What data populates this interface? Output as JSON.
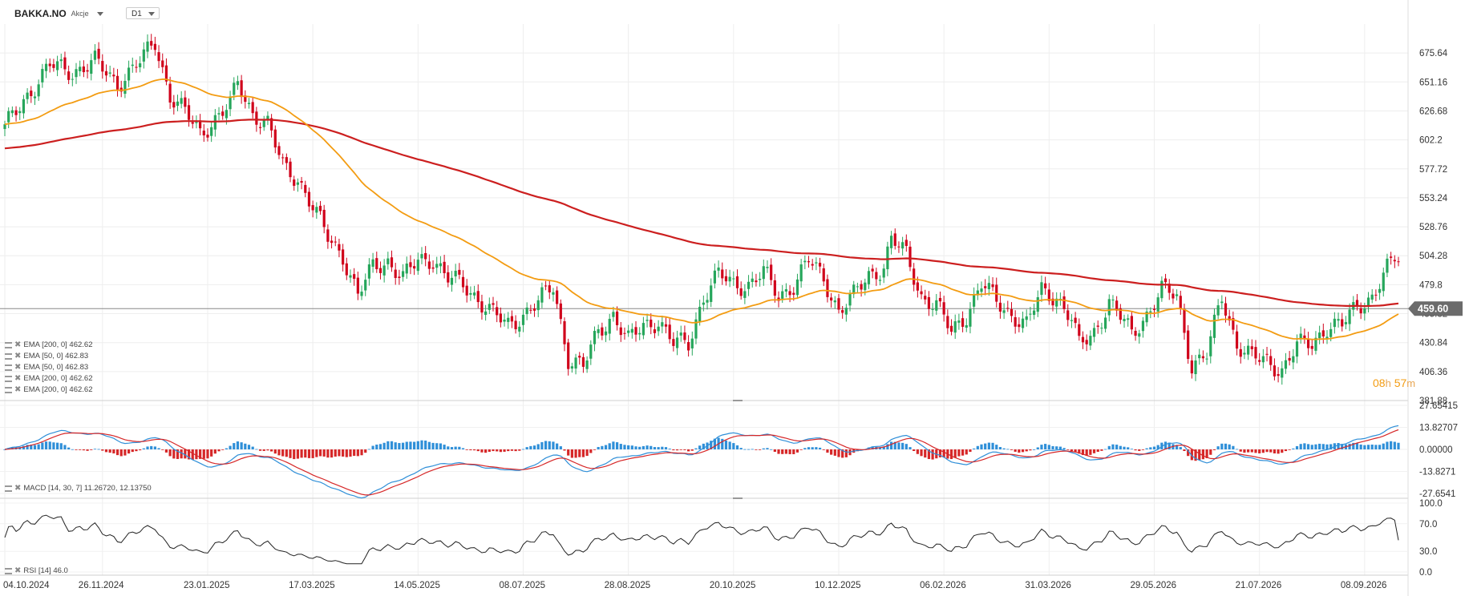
{
  "header": {
    "symbol": "BAKKA.NO",
    "type": "Akcje",
    "timeframe": "D1"
  },
  "timer": {
    "hours": "08",
    "h_unit": "h",
    "minutes": "57",
    "m_unit": "m"
  },
  "legend": [
    "EMA [200, 0] 462.62",
    "EMA [50, 0] 462.83",
    "EMA [50, 0] 462.83",
    "EMA [200, 0] 462.62",
    "EMA [200, 0] 462.62"
  ],
  "macd_legend": "MACD [14, 30, 7] 11.26720, 12.13750",
  "rsi_legend": "RSI [14] 46.0",
  "colors": {
    "up": "#26a65b",
    "down": "#d0021b",
    "ema50": "#f39c12",
    "ema200": "#cc1f1f",
    "macd": "#2f8fd8",
    "signal": "#d62728",
    "rsi": "#222222"
  },
  "chart_data": {
    "type": "candlestick",
    "price_axis": {
      "ticks": [
        675.64,
        651.16,
        626.68,
        602.2,
        577.72,
        553.24,
        528.76,
        504.28,
        479.8,
        455.32,
        430.84,
        406.36,
        381.88
      ],
      "range": [
        381.88,
        700.12
      ]
    },
    "last_price": "459.60",
    "dates": [
      "04.10.2024",
      "26.11.2024",
      "23.01.2025",
      "17.03.2025",
      "14.05.2025",
      "08.07.2025",
      "28.08.2025",
      "20.10.2025",
      "10.12.2025",
      "06.02.2026",
      "31.03.2026",
      "29.05.2026",
      "21.07.2026",
      "08.09.2026"
    ],
    "close_anchors": [
      [
        0,
        612
      ],
      [
        6,
        640
      ],
      [
        12,
        665
      ],
      [
        18,
        660
      ],
      [
        24,
        668
      ],
      [
        30,
        650
      ],
      [
        36,
        668
      ],
      [
        40,
        685
      ],
      [
        44,
        640
      ],
      [
        48,
        625
      ],
      [
        52,
        608
      ],
      [
        56,
        620
      ],
      [
        60,
        632
      ],
      [
        62,
        650
      ],
      [
        66,
        625
      ],
      [
        70,
        615
      ],
      [
        74,
        580
      ],
      [
        78,
        570
      ],
      [
        82,
        545
      ],
      [
        86,
        520
      ],
      [
        90,
        505
      ],
      [
        94,
        470
      ],
      [
        98,
        495
      ],
      [
        102,
        500
      ],
      [
        106,
        485
      ],
      [
        110,
        500
      ],
      [
        114,
        502
      ],
      [
        118,
        485
      ],
      [
        122,
        480
      ],
      [
        126,
        468
      ],
      [
        130,
        455
      ],
      [
        134,
        445
      ],
      [
        138,
        455
      ],
      [
        142,
        465
      ],
      [
        146,
        478
      ],
      [
        150,
        418
      ],
      [
        154,
        410
      ],
      [
        158,
        440
      ],
      [
        162,
        455
      ],
      [
        166,
        432
      ],
      [
        170,
        445
      ],
      [
        174,
        450
      ],
      [
        178,
        430
      ],
      [
        182,
        430
      ],
      [
        186,
        470
      ],
      [
        190,
        488
      ],
      [
        194,
        480
      ],
      [
        198,
        480
      ],
      [
        202,
        490
      ],
      [
        206,
        470
      ],
      [
        210,
        480
      ],
      [
        214,
        500
      ],
      [
        218,
        485
      ],
      [
        222,
        458
      ],
      [
        226,
        470
      ],
      [
        230,
        488
      ],
      [
        234,
        495
      ],
      [
        236,
        518
      ],
      [
        240,
        505
      ],
      [
        244,
        470
      ],
      [
        248,
        462
      ],
      [
        252,
        440
      ],
      [
        256,
        455
      ],
      [
        260,
        480
      ],
      [
        264,
        466
      ],
      [
        268,
        455
      ],
      [
        272,
        445
      ],
      [
        276,
        475
      ],
      [
        280,
        470
      ],
      [
        284,
        450
      ],
      [
        286,
        428
      ],
      [
        290,
        440
      ],
      [
        294,
        465
      ],
      [
        298,
        448
      ],
      [
        300,
        438
      ],
      [
        304,
        455
      ],
      [
        308,
        475
      ],
      [
        312,
        470
      ],
      [
        316,
        412
      ],
      [
        320,
        420
      ],
      [
        324,
        470
      ],
      [
        328,
        430
      ],
      [
        332,
        418
      ],
      [
        336,
        415
      ],
      [
        340,
        408
      ],
      [
        344,
        428
      ],
      [
        348,
        430
      ],
      [
        352,
        445
      ],
      [
        356,
        445
      ],
      [
        360,
        462
      ],
      [
        364,
        470
      ],
      [
        368,
        492
      ],
      [
        370,
        502
      ]
    ],
    "series": [
      {
        "name": "EMA [200, 0]",
        "value": 462.62
      },
      {
        "name": "EMA [50, 0]",
        "value": 462.83
      }
    ]
  },
  "macd": {
    "name": "MACD [14, 30, 7]",
    "macd": 11.2672,
    "signal": 12.1375,
    "axis": [
      "27.65415",
      "13.82707",
      "0.00000",
      "-13.8271",
      "-27.6541"
    ]
  },
  "rsi": {
    "name": "RSI [14]",
    "value": 46.0,
    "axis": [
      "100.0",
      "70.0",
      "30.0",
      "0.0"
    ]
  }
}
